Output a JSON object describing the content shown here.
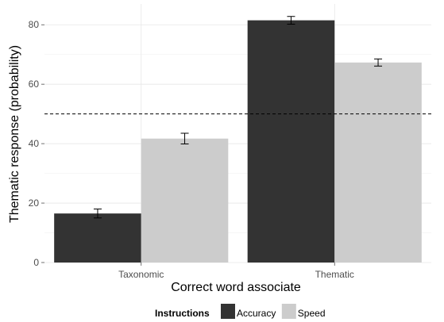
{
  "chart_data": {
    "type": "bar",
    "categories": [
      "Taxonomic",
      "Thematic"
    ],
    "series": [
      {
        "name": "Accuracy",
        "values": [
          16.5,
          81.5
        ],
        "errors": [
          1.5,
          1.3
        ],
        "color": "#333333"
      },
      {
        "name": "Speed",
        "values": [
          41.7,
          67.3
        ],
        "errors": [
          1.8,
          1.2
        ],
        "color": "#cccccc"
      }
    ],
    "xlabel": "Correct word associate",
    "ylabel": "Thematic response (probability)",
    "ylim": [
      0,
      87
    ],
    "yticks": [
      "0",
      "20",
      "40",
      "60",
      "80"
    ],
    "reference_line": 50,
    "legend": {
      "title": "Instructions",
      "position": "bottom"
    },
    "grid": true
  }
}
